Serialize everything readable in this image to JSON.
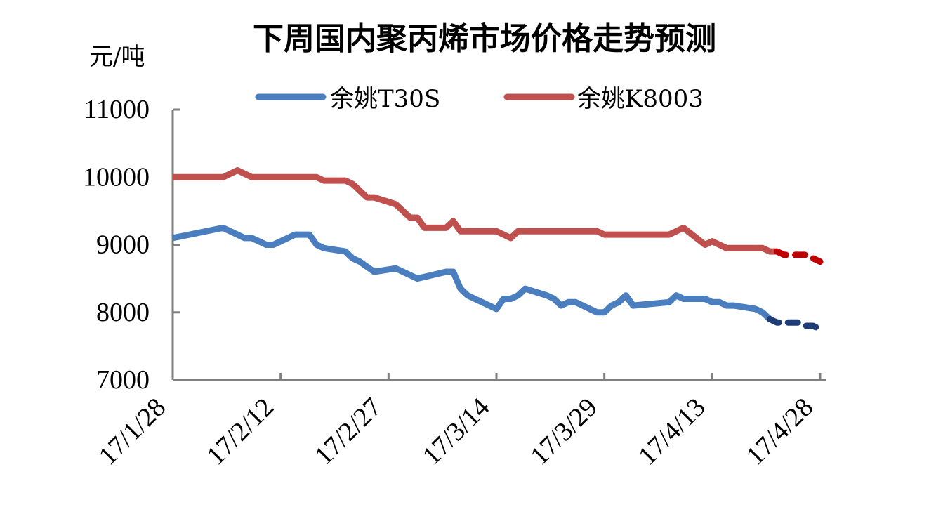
{
  "chart_data": {
    "type": "line",
    "title": "下周国内聚丙烯市场价格走势预测",
    "ylabel": "元/吨",
    "ylim": [
      7000,
      11000
    ],
    "yticks": [
      7000,
      8000,
      9000,
      10000,
      11000
    ],
    "xlim": [
      "2017-01-28",
      "2017-04-28"
    ],
    "xticks": [
      {
        "label": "17/1/28",
        "date": "2017-01-28"
      },
      {
        "label": "17/2/12",
        "date": "2017-02-12"
      },
      {
        "label": "17/2/27",
        "date": "2017-02-27"
      },
      {
        "label": "17/3/14",
        "date": "2017-03-14"
      },
      {
        "label": "17/3/29",
        "date": "2017-03-29"
      },
      {
        "label": "17/4/13",
        "date": "2017-04-13"
      },
      {
        "label": "17/4/28",
        "date": "2017-04-28"
      }
    ],
    "legend_position": "top",
    "series": [
      {
        "name": "余姚T30S",
        "color": "#4a7ebf",
        "forecast_color": "#1f3d74",
        "points": [
          [
            "2017-01-28",
            9100
          ],
          [
            "2017-02-04",
            9250
          ],
          [
            "2017-02-07",
            9100
          ],
          [
            "2017-02-08",
            9100
          ],
          [
            "2017-02-10",
            9000
          ],
          [
            "2017-02-11",
            9000
          ],
          [
            "2017-02-14",
            9150
          ],
          [
            "2017-02-16",
            9150
          ],
          [
            "2017-02-17",
            9000
          ],
          [
            "2017-02-18",
            8950
          ],
          [
            "2017-02-21",
            8900
          ],
          [
            "2017-02-22",
            8800
          ],
          [
            "2017-02-23",
            8750
          ],
          [
            "2017-02-25",
            8600
          ],
          [
            "2017-02-28",
            8650
          ],
          [
            "2017-03-03",
            8500
          ],
          [
            "2017-03-07",
            8600
          ],
          [
            "2017-03-08",
            8600
          ],
          [
            "2017-03-09",
            8350
          ],
          [
            "2017-03-10",
            8250
          ],
          [
            "2017-03-14",
            8050
          ],
          [
            "2017-03-15",
            8200
          ],
          [
            "2017-03-16",
            8200
          ],
          [
            "2017-03-17",
            8250
          ],
          [
            "2017-03-18",
            8350
          ],
          [
            "2017-03-21",
            8250
          ],
          [
            "2017-03-22",
            8200
          ],
          [
            "2017-03-23",
            8100
          ],
          [
            "2017-03-24",
            8150
          ],
          [
            "2017-03-25",
            8150
          ],
          [
            "2017-03-28",
            8000
          ],
          [
            "2017-03-29",
            8000
          ],
          [
            "2017-03-30",
            8100
          ],
          [
            "2017-03-31",
            8150
          ],
          [
            "2017-04-01",
            8250
          ],
          [
            "2017-04-02",
            8100
          ],
          [
            "2017-04-07",
            8150
          ],
          [
            "2017-04-08",
            8250
          ],
          [
            "2017-04-09",
            8200
          ],
          [
            "2017-04-12",
            8200
          ],
          [
            "2017-04-13",
            8150
          ],
          [
            "2017-04-14",
            8150
          ],
          [
            "2017-04-15",
            8100
          ],
          [
            "2017-04-16",
            8100
          ],
          [
            "2017-04-19",
            8050
          ],
          [
            "2017-04-20",
            8000
          ],
          [
            "2017-04-21",
            7900
          ]
        ],
        "forecast": [
          [
            "2017-04-21",
            7900
          ],
          [
            "2017-04-22",
            7850
          ],
          [
            "2017-04-23",
            7850
          ],
          [
            "2017-04-25",
            7850
          ],
          [
            "2017-04-26",
            7800
          ],
          [
            "2017-04-27",
            7800
          ],
          [
            "2017-04-28",
            7750
          ]
        ]
      },
      {
        "name": "余姚K8003",
        "color": "#c0504d",
        "forecast_color": "#c00000",
        "points": [
          [
            "2017-01-28",
            10000
          ],
          [
            "2017-02-04",
            10000
          ],
          [
            "2017-02-06",
            10100
          ],
          [
            "2017-02-08",
            10000
          ],
          [
            "2017-02-16",
            10000
          ],
          [
            "2017-02-17",
            10000
          ],
          [
            "2017-02-18",
            9950
          ],
          [
            "2017-02-21",
            9950
          ],
          [
            "2017-02-22",
            9900
          ],
          [
            "2017-02-24",
            9700
          ],
          [
            "2017-02-25",
            9700
          ],
          [
            "2017-02-28",
            9600
          ],
          [
            "2017-03-02",
            9400
          ],
          [
            "2017-03-03",
            9400
          ],
          [
            "2017-03-04",
            9250
          ],
          [
            "2017-03-07",
            9250
          ],
          [
            "2017-03-08",
            9350
          ],
          [
            "2017-03-09",
            9200
          ],
          [
            "2017-03-14",
            9200
          ],
          [
            "2017-03-16",
            9100
          ],
          [
            "2017-03-17",
            9200
          ],
          [
            "2017-03-28",
            9200
          ],
          [
            "2017-03-29",
            9150
          ],
          [
            "2017-04-07",
            9150
          ],
          [
            "2017-04-08",
            9200
          ],
          [
            "2017-04-09",
            9250
          ],
          [
            "2017-04-12",
            9000
          ],
          [
            "2017-04-13",
            9050
          ],
          [
            "2017-04-15",
            8950
          ],
          [
            "2017-04-20",
            8950
          ],
          [
            "2017-04-21",
            8900
          ],
          [
            "2017-04-22",
            8900
          ]
        ],
        "forecast": [
          [
            "2017-04-22",
            8900
          ],
          [
            "2017-04-23",
            8850
          ],
          [
            "2017-04-24",
            8850
          ],
          [
            "2017-04-26",
            8850
          ],
          [
            "2017-04-27",
            8800
          ],
          [
            "2017-04-28",
            8750
          ]
        ]
      }
    ]
  }
}
